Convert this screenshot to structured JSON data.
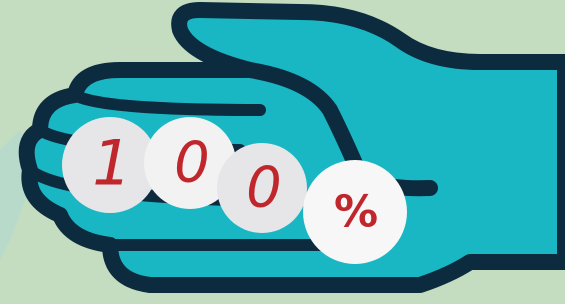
{
  "coins": [
    {
      "label": "1"
    },
    {
      "label": "0"
    },
    {
      "label": "0"
    },
    {
      "label": "%"
    }
  ]
}
